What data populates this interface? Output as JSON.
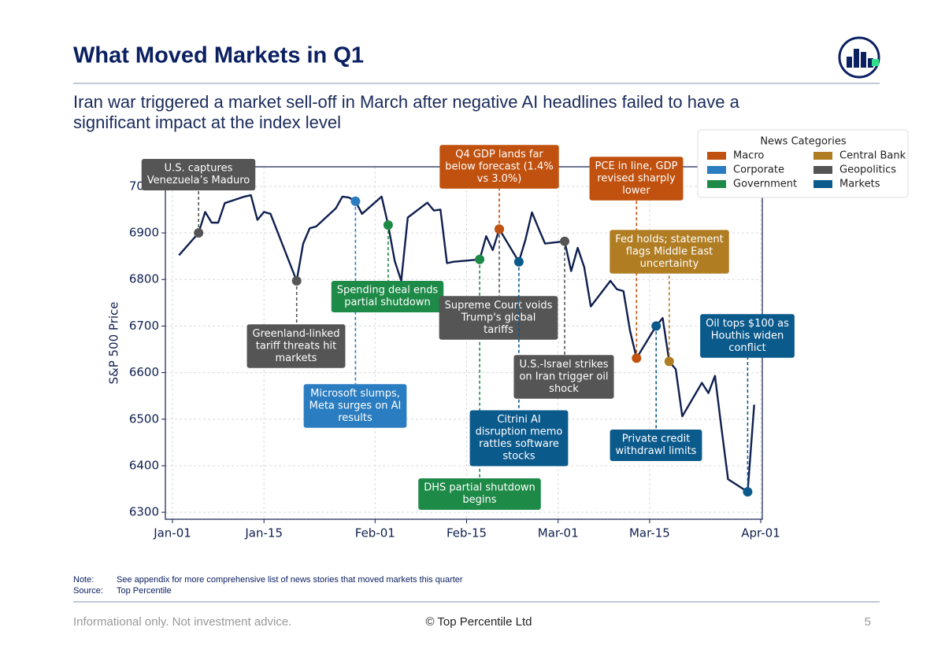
{
  "header": {
    "title": "What Moved Markets in Q1",
    "subtitle": [
      "Iran war triggered a market sell-off in March after negative AI headlines failed to have a",
      "significant impact at the index level"
    ]
  },
  "chart_data": {
    "type": "line",
    "ylabel": "S&P 500 Price",
    "color": "#0f1f4f",
    "grid": true,
    "x": [
      "01-02",
      "01-05",
      "01-06",
      "01-07",
      "01-08",
      "01-09",
      "01-12",
      "01-13",
      "01-14",
      "01-15",
      "01-16",
      "01-20",
      "01-21",
      "01-22",
      "01-23",
      "01-26",
      "01-27",
      "01-28",
      "01-29",
      "01-30",
      "02-02",
      "02-03",
      "02-04",
      "02-05",
      "02-06",
      "02-09",
      "02-10",
      "02-11",
      "02-12",
      "02-13",
      "02-17",
      "02-18",
      "02-19",
      "02-20",
      "02-23",
      "02-24",
      "02-25",
      "02-26",
      "02-27",
      "03-02",
      "03-03",
      "03-04",
      "03-05",
      "03-06",
      "03-09",
      "03-10",
      "03-11",
      "03-12",
      "03-13",
      "03-16",
      "03-17",
      "03-18",
      "03-19",
      "03-20",
      "03-23",
      "03-24",
      "03-25",
      "03-26",
      "03-27",
      "03-30",
      "03-31"
    ],
    "values": [
      6852,
      6900,
      6945,
      6922,
      6922,
      6964,
      6978,
      6981,
      6928,
      6945,
      6941,
      6797,
      6877,
      6910,
      6914,
      6953,
      6978,
      6976,
      6968,
      6941,
      6978,
      6917,
      6840,
      6797,
      6933,
      6965,
      6948,
      6950,
      6835,
      6838,
      6843,
      6893,
      6863,
      6908,
      6838,
      6885,
      6944,
      6910,
      6877,
      6882,
      6818,
      6868,
      6826,
      6742,
      6797,
      6779,
      6775,
      6690,
      6631,
      6700,
      6717,
      6624,
      6607,
      6506,
      6578,
      6556,
      6593,
      6480,
      6371,
      6344,
      6531
    ],
    "xlim": [
      "01-01",
      "04-01"
    ],
    "xticks": [
      {
        "value": "01-01",
        "label": "Jan-01"
      },
      {
        "value": "01-15",
        "label": "Jan-15"
      },
      {
        "value": "02-01",
        "label": "Feb-01"
      },
      {
        "value": "02-15",
        "label": "Feb-15"
      },
      {
        "value": "03-01",
        "label": "Mar-01"
      },
      {
        "value": "03-15",
        "label": "Mar-15"
      },
      {
        "value": "04-01",
        "label": "Apr-01"
      }
    ],
    "ylim": [
      6285,
      7042
    ],
    "yticks": [
      6300,
      6400,
      6500,
      6600,
      6700,
      6800,
      6900,
      7000
    ],
    "legend": {
      "title": "News Categories",
      "position": "upper right",
      "categories": [
        {
          "name": "Macro",
          "color": "#c0510f"
        },
        {
          "name": "Corporate",
          "color": "#2a7dc0"
        },
        {
          "name": "Government",
          "color": "#1e8a48"
        },
        {
          "name": "Central Bank",
          "color": "#b07d23"
        },
        {
          "name": "Geopolitics",
          "color": "#555555"
        },
        {
          "name": "Markets",
          "color": "#0b5a8c"
        }
      ]
    },
    "events": [
      {
        "x": "01-05",
        "category": "Geopolitics",
        "lines": [
          "U.S. captures",
          "Venezuela’s Maduro"
        ]
      },
      {
        "x": "01-20",
        "category": "Geopolitics",
        "lines": [
          "Greenland-linked",
          "tariff threats hit",
          "markets"
        ]
      },
      {
        "x": "01-29",
        "category": "Corporate",
        "lines": [
          "Microsoft slumps,",
          "Meta surges on AI",
          "results"
        ]
      },
      {
        "x": "02-03",
        "category": "Government",
        "lines": [
          "Spending deal ends",
          "partial shutdown"
        ]
      },
      {
        "x": "02-17",
        "category": "Government",
        "lines": [
          "DHS partial shutdown",
          "begins"
        ]
      },
      {
        "x": "02-20",
        "category": "Geopolitics",
        "lines": [
          "Supreme Court voids",
          "Trump's global",
          "tariffs"
        ]
      },
      {
        "x": "02-20",
        "category": "Macro",
        "lines": [
          "Q4 GDP lands far",
          "below forecast (1.4%",
          "vs 3.0%)"
        ]
      },
      {
        "x": "02-23",
        "category": "Markets",
        "lines": [
          "Citrini AI",
          "disruption memo",
          "rattles software",
          "stocks"
        ]
      },
      {
        "x": "03-02",
        "category": "Geopolitics",
        "lines": [
          "U.S.-Israel strikes",
          "on Iran trigger oil",
          "shock"
        ]
      },
      {
        "x": "03-13",
        "category": "Macro",
        "lines": [
          "PCE in line, GDP",
          "revised sharply",
          "lower"
        ]
      },
      {
        "x": "03-16",
        "category": "Markets",
        "lines": [
          "Private credit",
          "withdrawl limits"
        ]
      },
      {
        "x": "03-18",
        "category": "Central Bank",
        "lines": [
          "Fed holds; statement",
          "flags Middle East",
          "uncertainty"
        ]
      },
      {
        "x": "03-30",
        "category": "Markets",
        "lines": [
          "Oil tops $100 as",
          "Houthis widen",
          "conflict"
        ]
      }
    ]
  },
  "notes": {
    "note_label": "Note:",
    "note": "See appendix for more comprehensive list of news stories that moved markets this quarter",
    "source_label": "Source:",
    "source": "Top Percentile"
  },
  "footer": {
    "disclaimer": "Informational only. Not investment advice.",
    "copyright": "© Top Percentile Ltd",
    "page": "5"
  }
}
